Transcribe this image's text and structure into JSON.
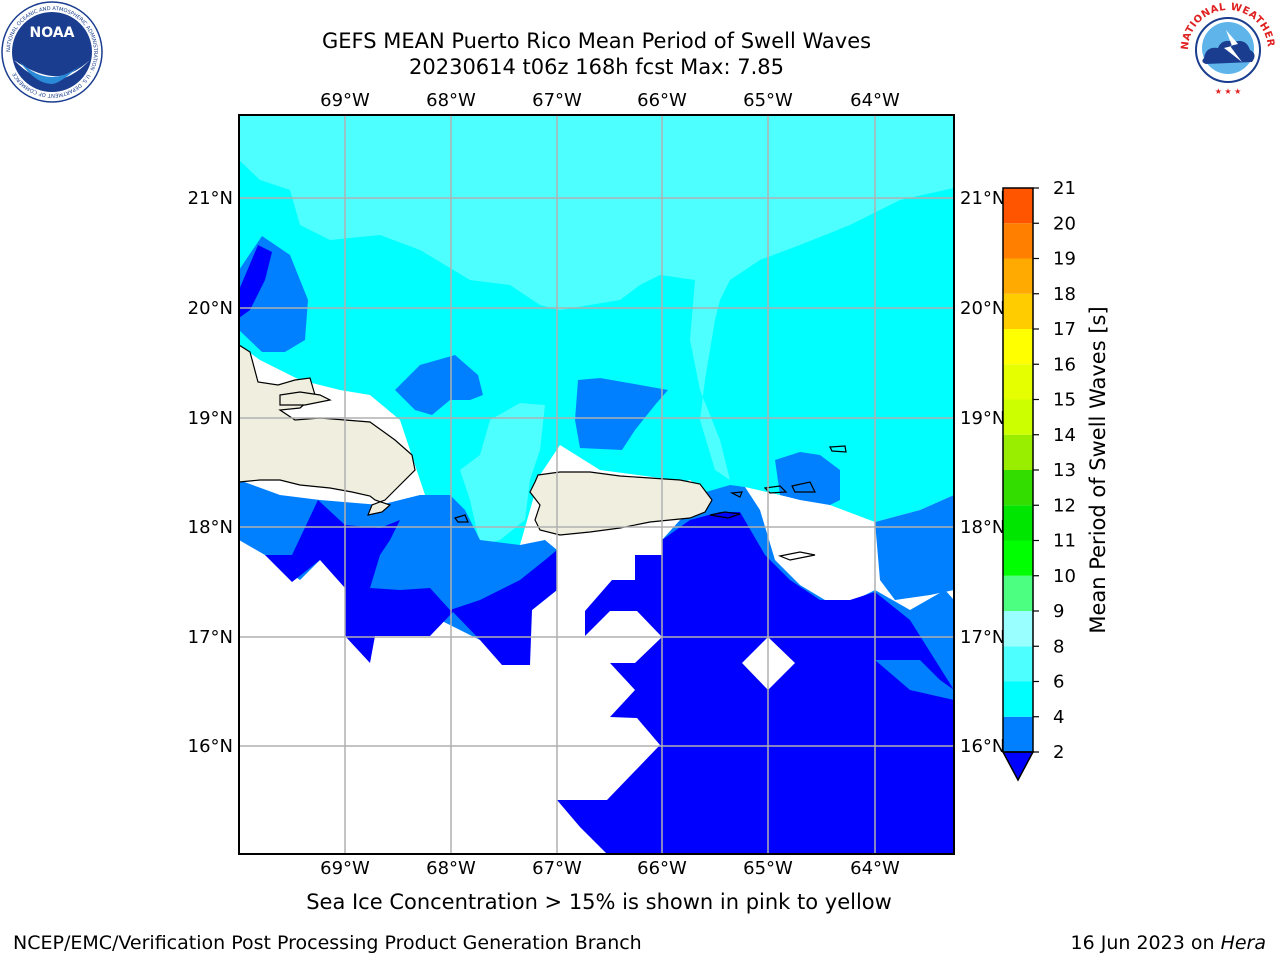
{
  "header": {
    "title_line1": "GEFS MEAN Puerto Rico Mean Period of Swell Waves",
    "title_line2": "20230614 t06z 168h fcst   Max: 7.85"
  },
  "logos": {
    "left_name": "noaa-logo",
    "left_text": "NOAA",
    "left_ring_text": "NATIONAL OCEANIC AND ATMOSPHERIC ADMINISTRATION · U.S. DEPARTMENT OF COMMERCE",
    "right_name": "nws-logo",
    "right_ring_text": "NATIONAL WEATHER SERVICE"
  },
  "map": {
    "lon_labels": [
      "69°W",
      "68°W",
      "67°W",
      "66°W",
      "65°W",
      "64°W"
    ],
    "lat_labels": [
      "21°N",
      "20°N",
      "19°N",
      "18°N",
      "17°N",
      "16°N"
    ],
    "colors": {
      "level_0_2": "#0000ff",
      "level_2_4": "#0080ff",
      "level_4_6": "#00ffff",
      "level_6_8": "#4dffff",
      "land": "#efeedf",
      "grid": "#b0b0b0"
    }
  },
  "colorbar": {
    "label": "Mean Period of Swell Waves [s]",
    "ticks": [
      "2",
      "4",
      "6",
      "8",
      "9",
      "10",
      "11",
      "12",
      "13",
      "14",
      "15",
      "16",
      "17",
      "18",
      "19",
      "20",
      "21"
    ],
    "colors": [
      "#0080ff",
      "#00ffff",
      "#4dffff",
      "#99ffff",
      "#4dff80",
      "#00ff00",
      "#00e600",
      "#33dd00",
      "#99ee00",
      "#ccff00",
      "#e6ff00",
      "#ffff00",
      "#ffcc00",
      "#ffaa00",
      "#ff8000",
      "#ff5500",
      "#ff2200",
      "#ff0000"
    ],
    "extend_color": "#0000ff"
  },
  "notes": {
    "sea_ice": "Sea Ice Concentration > 15% is shown in pink to yellow"
  },
  "footer": {
    "left": "NCEP/EMC/Verification Post Processing Product Generation Branch",
    "right_prefix": "16 Jun 2023 on ",
    "right_machine": "Hera"
  }
}
